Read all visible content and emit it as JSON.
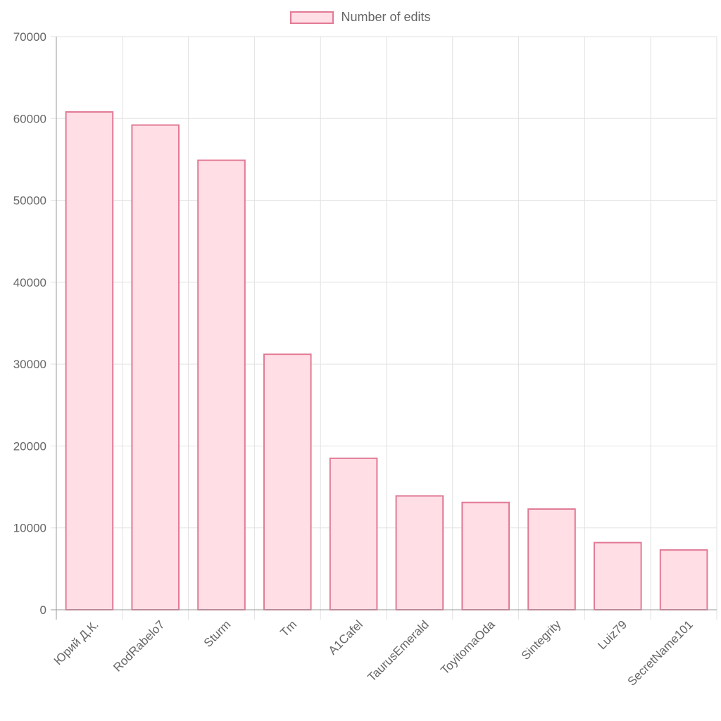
{
  "chart_data": {
    "type": "bar",
    "categories": [
      "Юрий Д.К.",
      "RodRabelo7",
      "Sturm",
      "Tm",
      "A1Cafel",
      "TaurusEmerald",
      "ToyitomaOda",
      "Sintegrity",
      "Luiz79",
      "SecretName101"
    ],
    "series": [
      {
        "name": "Number of edits",
        "values": [
          60800,
          59200,
          54900,
          31200,
          18500,
          13900,
          13100,
          12300,
          8200,
          7300
        ]
      }
    ],
    "ylim": [
      0,
      70000
    ],
    "yticks": [
      "0",
      "10000",
      "20000",
      "30000",
      "40000",
      "50000",
      "60000",
      "70000"
    ],
    "grid": true,
    "legend_position": "top",
    "colors": {
      "bar_fill": "#ffdfe5",
      "bar_border": "#e27a95",
      "grid": "#e2e2e2",
      "axis": "#9a9a9a"
    }
  }
}
